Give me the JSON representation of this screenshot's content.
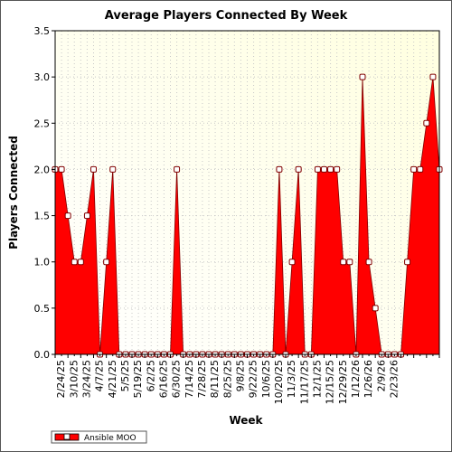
{
  "chart_data": {
    "type": "area",
    "title": "Average Players Connected By Week",
    "xlabel": "Week",
    "ylabel": "Players Connected",
    "ylim": [
      0,
      3.5
    ],
    "y_ticks": [
      "0.0",
      "0.5",
      "1.0",
      "1.5",
      "2.0",
      "2.5",
      "3.0",
      "3.5"
    ],
    "x_tick_labels": [
      "2/24/25",
      "3/10/25",
      "3/24/25",
      "4/7/25",
      "4/21/25",
      "5/5/25",
      "5/19/25",
      "6/2/25",
      "6/16/25",
      "6/30/25",
      "7/14/25",
      "7/28/25",
      "8/11/25",
      "8/25/25",
      "9/8/25",
      "9/22/25",
      "10/6/25",
      "10/20/25",
      "11/3/25",
      "11/17/25",
      "12/1/25",
      "12/15/25",
      "12/29/25",
      "1/12/26",
      "1/26/26",
      "2/9/26",
      "2/23/26"
    ],
    "grid": true,
    "legend_position": "bottom-left",
    "background_gradient": [
      "#ffffe0",
      "#ffffff"
    ],
    "colors": {
      "series": "#ff0000",
      "outline": "#800000",
      "marker_fill": "#ffffff"
    },
    "series": [
      {
        "name": "Ansible MOO",
        "values": [
          2,
          2,
          1.5,
          1,
          1,
          1.5,
          2,
          0,
          1,
          2,
          0,
          0,
          0,
          0,
          0,
          0,
          0,
          0,
          0,
          2,
          0,
          0,
          0,
          0,
          0,
          0,
          0,
          0,
          0,
          0,
          0,
          0,
          0,
          0,
          0,
          2,
          0,
          1,
          2,
          0,
          0,
          2,
          2,
          2,
          2,
          1,
          1,
          0,
          3,
          1,
          0.5,
          0,
          0,
          0,
          0,
          1,
          2,
          2,
          2.5,
          3,
          2
        ]
      }
    ]
  }
}
